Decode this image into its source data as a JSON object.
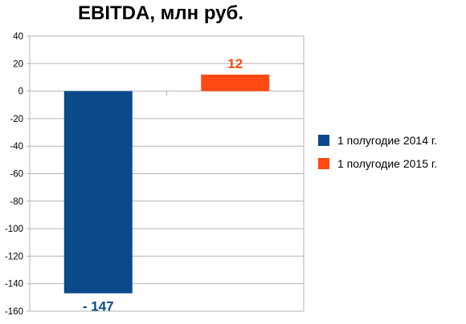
{
  "chart_data": {
    "type": "bar",
    "title": "EBITDA, млн руб.",
    "xlabel": "",
    "ylabel": "",
    "ylim": [
      -160,
      40
    ],
    "ytick_step": 20,
    "grid": true,
    "legend_position": "right",
    "categories": [
      "1 полугодие 2014 г.",
      "1 полугодие 2015 г."
    ],
    "values": [
      -147,
      12
    ],
    "colors": [
      "#0a4a8a",
      "#ff4a14"
    ],
    "data_labels": [
      "- 147",
      "12"
    ],
    "data_label_colors": [
      "#0a4a8a",
      "#ff4a14"
    ]
  }
}
